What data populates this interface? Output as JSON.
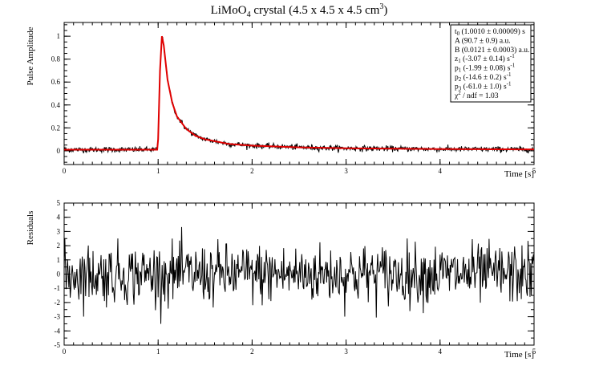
{
  "title": {
    "main": "LiMoO",
    "sub": "4",
    "rest": " crystal (4.5 x 4.5 x 4.5 cm",
    "sup": "3",
    "close": ")"
  },
  "stats": [
    {
      "pre": "t",
      "sub": "0",
      "post": " (1.0010 ± 0.00009) s"
    },
    {
      "pre": "A (90.7 ± 0.9) a.u.",
      "sub": "",
      "post": ""
    },
    {
      "pre": "B (0.0121 ± 0.0003) a.u.",
      "sub": "",
      "post": ""
    },
    {
      "pre": "z",
      "sub": "1",
      "post": " (-3.07 ± 0.14) s",
      "sup": "-1"
    },
    {
      "pre": "p",
      "sub": "1",
      "post": " (-1.99 ± 0.08) s",
      "sup": "-1"
    },
    {
      "pre": "p",
      "sub": "2",
      "post": " (-14.6 ± 0.2) s",
      "sup": "-1"
    },
    {
      "pre": "p",
      "sub": "3",
      "post": " (-61.0 ± 1.0) s",
      "sup": "-1"
    },
    {
      "pre": "χ",
      "sup2": "2",
      "post": " / ndf  = 1.03"
    }
  ],
  "chart_data": [
    {
      "type": "line",
      "ylabel": "Pulse Amplitude",
      "xlabel": "Time [s]",
      "xlim": [
        0,
        5
      ],
      "ylim": [
        -0.12,
        1.12
      ],
      "xticks": [
        "0",
        "1",
        "2",
        "3",
        "4",
        "5"
      ],
      "yticks": [
        "0",
        "0.2",
        "0.4",
        "0.6",
        "0.8",
        "1"
      ],
      "colors": {
        "data": "#000000",
        "fit": "#e00000"
      },
      "series": [
        {
          "x": [
            0,
            0.5,
            0.99,
            1.0,
            1.02,
            1.04,
            1.06,
            1.1,
            1.15,
            1.2,
            1.3,
            1.4,
            1.5,
            1.75,
            2.0,
            2.5,
            3.0,
            4.0,
            5.0
          ],
          "values": [
            0.01,
            0.01,
            0.01,
            0.1,
            0.7,
            1.0,
            0.92,
            0.62,
            0.42,
            0.3,
            0.19,
            0.13,
            0.1,
            0.06,
            0.045,
            0.03,
            0.022,
            0.015,
            0.012
          ]
        }
      ]
    },
    {
      "type": "line",
      "ylabel": "Residuals",
      "xlabel": "Time [s]",
      "xlim": [
        0,
        5
      ],
      "ylim": [
        -5,
        5
      ],
      "xticks": [
        "0",
        "1",
        "2",
        "3",
        "4",
        "5"
      ],
      "yticks": [
        "-5",
        "-4",
        "-3",
        "-2",
        "-1",
        "0",
        "1",
        "2",
        "3",
        "4",
        "5"
      ],
      "approx_range": [
        -3.5,
        3.5
      ],
      "colors": {
        "data": "#000000"
      }
    }
  ]
}
